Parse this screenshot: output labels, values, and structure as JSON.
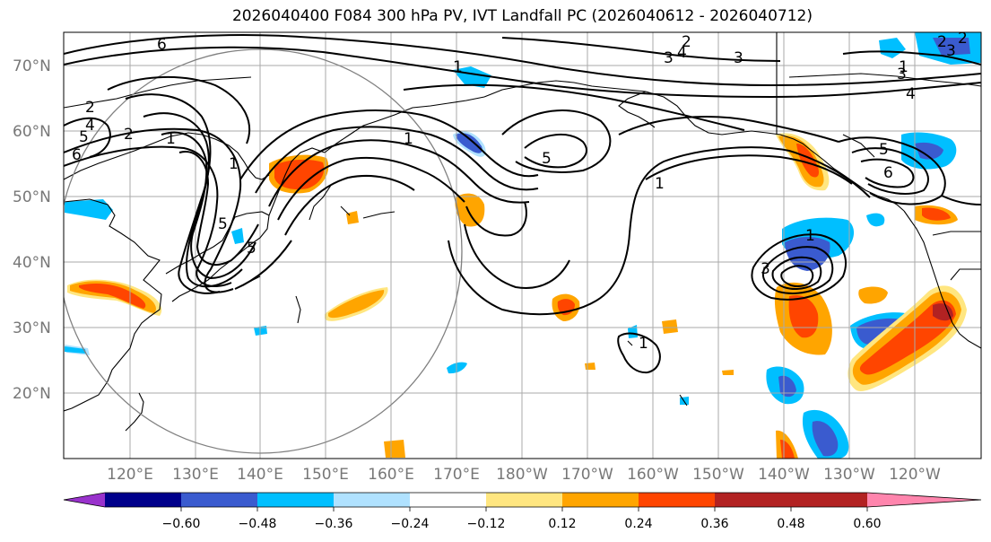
{
  "title": "2026040400 F084 300 hPa PV, IVT Landfall PC (2026040612 - 2026040712)",
  "lat_labels": [
    "70°N",
    "60°N",
    "50°N",
    "40°N",
    "30°N",
    "20°N"
  ],
  "lon_labels": [
    "120°E",
    "130°E",
    "140°E",
    "150°E",
    "160°E",
    "170°E",
    "180°W",
    "170°W",
    "160°W",
    "150°W",
    "140°W",
    "130°W",
    "120°W"
  ],
  "colorbar": {
    "colors": [
      "#9932cc",
      "#00008b",
      "#3a5bcf",
      "#00bfff",
      "#b0e2ff",
      "#ffffff",
      "#ffe680",
      "#ffa500",
      "#ff4500",
      "#b22222",
      "#ff85ad"
    ],
    "tick_labels": [
      "−0.60",
      "−0.48",
      "−0.36",
      "−0.24",
      "−0.12",
      "0.12",
      "0.24",
      "0.36",
      "0.48",
      "0.60"
    ]
  },
  "contour_labels": [
    "2",
    "2",
    "3",
    "4",
    "5",
    "6",
    "1",
    "2",
    "3",
    "4",
    "5",
    "6",
    "3",
    "2",
    "3",
    "4",
    "1",
    "5",
    "1",
    "5",
    "6",
    "1",
    "2",
    "3",
    "1",
    "1",
    "1",
    "1",
    "5"
  ]
}
